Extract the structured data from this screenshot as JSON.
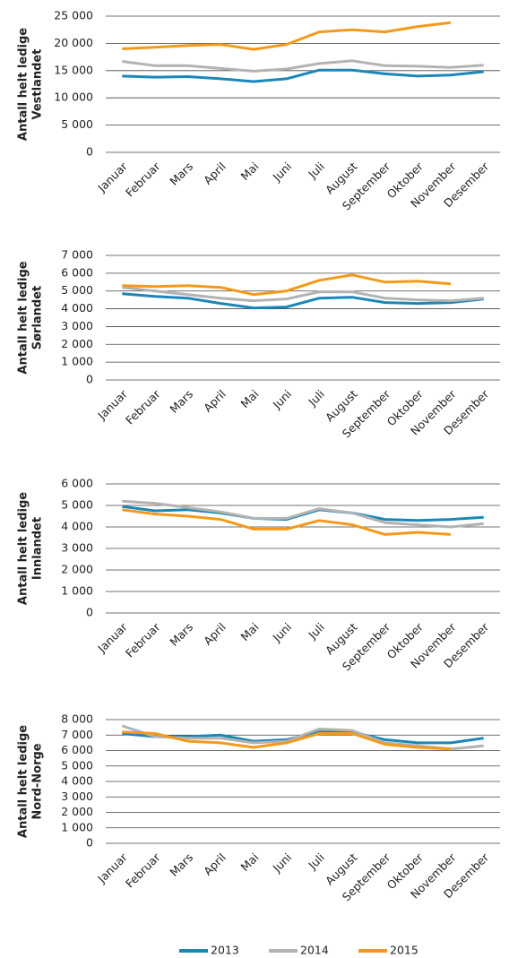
{
  "chart_data": [
    {
      "type": "line",
      "y_label": [
        "Antall helt ledige",
        "Vestlandet"
      ],
      "categories": [
        "Januar",
        "Februar",
        "Mars",
        "April",
        "Mai",
        "Juni",
        "Juli",
        "August",
        "September",
        "Oktober",
        "November",
        "Desember"
      ],
      "ylim": [
        0,
        25000
      ],
      "yticks": [
        {
          "value": 0,
          "label": "0"
        },
        {
          "value": 5000,
          "label": "5 000"
        },
        {
          "value": 10000,
          "label": "10 000"
        },
        {
          "value": 15000,
          "label": "15 000"
        },
        {
          "value": 20000,
          "label": "20 000"
        },
        {
          "value": 25000,
          "label": "25 000"
        }
      ],
      "grid": true,
      "series": [
        {
          "name": "2013",
          "color": "#1a87b8",
          "values": [
            14000,
            13800,
            13900,
            13500,
            13000,
            13500,
            15100,
            15100,
            14400,
            14000,
            14200,
            14800
          ]
        },
        {
          "name": "2014",
          "color": "#b3b3b3",
          "values": [
            16700,
            15900,
            15900,
            15400,
            14900,
            15300,
            16300,
            16800,
            15900,
            15800,
            15600,
            16000
          ]
        },
        {
          "name": "2015",
          "color": "#f39a1a",
          "values": [
            19000,
            19300,
            19600,
            19800,
            18900,
            19800,
            22100,
            22500,
            22100,
            23100,
            23800,
            null
          ]
        }
      ]
    },
    {
      "type": "line",
      "y_label": [
        "Antall helt ledige",
        "Sørlandet"
      ],
      "categories": [
        "Januar",
        "Februar",
        "Mars",
        "April",
        "Mai",
        "Juni",
        "Juli",
        "August",
        "September",
        "Oktober",
        "November",
        "Desember"
      ],
      "ylim": [
        0,
        7000
      ],
      "yticks": [
        {
          "value": 0,
          "label": "0"
        },
        {
          "value": 1000,
          "label": "1 000"
        },
        {
          "value": 2000,
          "label": "2 000"
        },
        {
          "value": 3000,
          "label": "3 000"
        },
        {
          "value": 4000,
          "label": "4 000"
        },
        {
          "value": 5000,
          "label": "5 000"
        },
        {
          "value": 6000,
          "label": "6 000"
        },
        {
          "value": 7000,
          "label": "7 000"
        }
      ],
      "grid": true,
      "series": [
        {
          "name": "2013",
          "color": "#1a87b8",
          "values": [
            4850,
            4700,
            4600,
            4300,
            4050,
            4100,
            4600,
            4650,
            4350,
            4300,
            4350,
            4550
          ]
        },
        {
          "name": "2014",
          "color": "#b3b3b3",
          "values": [
            5200,
            5000,
            4800,
            4600,
            4450,
            4550,
            4950,
            4950,
            4600,
            4500,
            4450,
            4600
          ]
        },
        {
          "name": "2015",
          "color": "#f39a1a",
          "values": [
            5300,
            5250,
            5300,
            5200,
            4800,
            5000,
            5600,
            5900,
            5500,
            5550,
            5400,
            null
          ]
        }
      ]
    },
    {
      "type": "line",
      "y_label": [
        "Antall helt ledige",
        "Innlandet"
      ],
      "categories": [
        "Januar",
        "Februar",
        "Mars",
        "April",
        "Mai",
        "Juni",
        "Juli",
        "August",
        "September",
        "Oktober",
        "November",
        "Desember"
      ],
      "ylim": [
        0,
        6000
      ],
      "yticks": [
        {
          "value": 0,
          "label": "0"
        },
        {
          "value": 1000,
          "label": "1 000"
        },
        {
          "value": 2000,
          "label": "2 000"
        },
        {
          "value": 3000,
          "label": "3 000"
        },
        {
          "value": 4000,
          "label": "4 000"
        },
        {
          "value": 5000,
          "label": "5 000"
        },
        {
          "value": 6000,
          "label": "6 000"
        }
      ],
      "grid": true,
      "series": [
        {
          "name": "2013",
          "color": "#1a87b8",
          "values": [
            4950,
            4750,
            4800,
            4650,
            4400,
            4350,
            4800,
            4650,
            4350,
            4300,
            4350,
            4450
          ]
        },
        {
          "name": "2014",
          "color": "#b3b3b3",
          "values": [
            5200,
            5100,
            4900,
            4700,
            4400,
            4400,
            4850,
            4650,
            4200,
            4100,
            4000,
            4150
          ]
        },
        {
          "name": "2015",
          "color": "#f39a1a",
          "values": [
            4800,
            4600,
            4500,
            4350,
            3900,
            3900,
            4300,
            4100,
            3650,
            3750,
            3650,
            null
          ]
        }
      ]
    },
    {
      "type": "line",
      "y_label": [
        "Antall helt ledige",
        "Nord-Norge"
      ],
      "categories": [
        "Januar",
        "Februar",
        "Mars",
        "April",
        "Mai",
        "Juni",
        "Juli",
        "August",
        "September",
        "Oktober",
        "November",
        "Desember"
      ],
      "ylim": [
        0,
        8000
      ],
      "yticks": [
        {
          "value": 0,
          "label": "0"
        },
        {
          "value": 1000,
          "label": "1 000"
        },
        {
          "value": 2000,
          "label": "2 000"
        },
        {
          "value": 3000,
          "label": "3 000"
        },
        {
          "value": 4000,
          "label": "4 000"
        },
        {
          "value": 5000,
          "label": "5 000"
        },
        {
          "value": 6000,
          "label": "6 000"
        },
        {
          "value": 7000,
          "label": "7 000"
        },
        {
          "value": 8000,
          "label": "8 000"
        }
      ],
      "grid": true,
      "series": [
        {
          "name": "2013",
          "color": "#1a87b8",
          "values": [
            7100,
            6900,
            6900,
            7000,
            6600,
            6700,
            7200,
            7200,
            6700,
            6500,
            6500,
            6800
          ]
        },
        {
          "name": "2014",
          "color": "#b3b3b3",
          "values": [
            7600,
            6900,
            6800,
            6800,
            6500,
            6600,
            7400,
            7300,
            6500,
            6300,
            6100,
            6300
          ]
        },
        {
          "name": "2015",
          "color": "#f39a1a",
          "values": [
            7200,
            7100,
            6600,
            6500,
            6200,
            6500,
            7100,
            7100,
            6400,
            6200,
            6100,
            null
          ]
        }
      ]
    }
  ]
}
